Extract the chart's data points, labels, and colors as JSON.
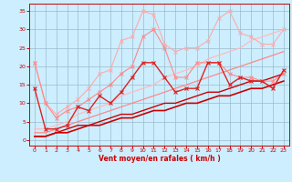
{
  "x": [
    0,
    1,
    2,
    3,
    4,
    5,
    6,
    7,
    8,
    9,
    10,
    11,
    12,
    13,
    14,
    15,
    16,
    17,
    18,
    19,
    20,
    21,
    22,
    23
  ],
  "noisy1_y": [
    21,
    10,
    7,
    9,
    11,
    14,
    18,
    19,
    27,
    28,
    35,
    34,
    26,
    24,
    25,
    25,
    27,
    33,
    35,
    29,
    28,
    26,
    26,
    30
  ],
  "noisy2_y": [
    21,
    10,
    6,
    8,
    9,
    11,
    13,
    15,
    18,
    20,
    28,
    30,
    25,
    17,
    17,
    21,
    21,
    21,
    18,
    17,
    17,
    16,
    16,
    18
  ],
  "noisy3_y": [
    14,
    3,
    3,
    4,
    9,
    8,
    12,
    10,
    13,
    17,
    21,
    21,
    17,
    13,
    14,
    14,
    21,
    21,
    15,
    17,
    16,
    16,
    14,
    19
  ],
  "reg1_y": [
    1,
    1,
    2,
    2,
    3,
    4,
    4,
    5,
    6,
    6,
    7,
    8,
    8,
    9,
    10,
    10,
    11,
    12,
    12,
    13,
    14,
    14,
    15,
    16
  ],
  "reg2_y": [
    1,
    1,
    2,
    3,
    4,
    4,
    5,
    6,
    7,
    7,
    8,
    9,
    10,
    10,
    11,
    12,
    13,
    13,
    14,
    15,
    16,
    16,
    17,
    18
  ],
  "reg3_y": [
    2,
    2,
    3,
    4,
    5,
    6,
    7,
    8,
    9,
    10,
    11,
    12,
    13,
    14,
    15,
    16,
    17,
    18,
    19,
    20,
    21,
    22,
    23,
    24
  ],
  "reg4_y": [
    3,
    3,
    4,
    5,
    7,
    8,
    9,
    10,
    12,
    13,
    14,
    15,
    17,
    18,
    19,
    20,
    22,
    23,
    24,
    25,
    27,
    28,
    29,
    30
  ],
  "bg_color": "#cceeff",
  "grid_color": "#99bbcc",
  "noisy1_color": "#ffaaaa",
  "noisy2_color": "#ff8888",
  "noisy3_color": "#dd2222",
  "reg1_color": "#cc0000",
  "reg2_color": "#cc0000",
  "reg3_color": "#ff8888",
  "reg4_color": "#ffbbbb",
  "xlabel": "Vent moyen/en rafales ( km/h )",
  "ylim": [
    -1.5,
    37
  ],
  "xlim": [
    -0.5,
    23.5
  ],
  "yticks": [
    0,
    5,
    10,
    15,
    20,
    25,
    30,
    35
  ],
  "xticks": [
    0,
    1,
    2,
    3,
    4,
    5,
    6,
    7,
    8,
    9,
    10,
    11,
    12,
    13,
    14,
    15,
    16,
    17,
    18,
    19,
    20,
    21,
    22,
    23
  ]
}
